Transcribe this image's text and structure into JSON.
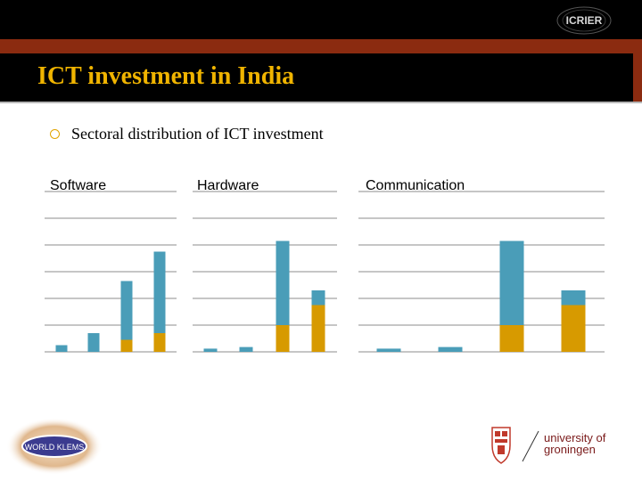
{
  "header": {
    "logo_text": "ICRIER",
    "title": "ICT investment in India"
  },
  "bullet": {
    "text": "Sectoral distribution of ICT investment"
  },
  "colors": {
    "series_top": "#4a9db8",
    "series_bottom": "#d79a00",
    "title_gold": "#f0b400",
    "band_rust": "#8b2b10"
  },
  "chart_data": [
    {
      "type": "bar",
      "title": "Software",
      "categories": [
        "",
        "",
        "",
        ""
      ],
      "series": [
        {
          "values": [
            0,
            0,
            0.45,
            0.7
          ]
        },
        {
          "values": [
            0.25,
            0.7,
            2.2,
            3.05
          ]
        }
      ],
      "ylim": [
        0,
        6
      ],
      "grid": true
    },
    {
      "type": "bar",
      "title": "Hardware",
      "categories": [
        "",
        "",
        "",
        ""
      ],
      "series": [
        {
          "values": [
            0,
            0,
            1.0,
            1.75
          ]
        },
        {
          "values": [
            0.12,
            0.18,
            3.15,
            0.55
          ]
        }
      ],
      "ylim": [
        0,
        6
      ],
      "grid": true
    },
    {
      "type": "bar",
      "title": "Communication",
      "categories": [
        "",
        "",
        "",
        ""
      ],
      "series": [
        {
          "values": [
            0,
            0,
            1.0,
            1.75
          ]
        },
        {
          "values": [
            0.12,
            0.18,
            3.15,
            0.55
          ]
        }
      ],
      "ylim": [
        0,
        6
      ],
      "grid": true
    }
  ],
  "footer": {
    "left_logo_text": "WORLD KLEMS",
    "right_logo_line1": "university of",
    "right_logo_line2": "groningen"
  }
}
